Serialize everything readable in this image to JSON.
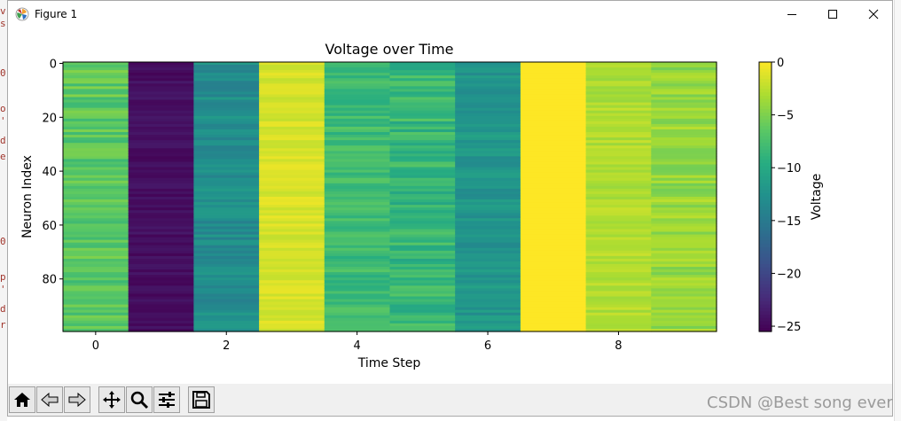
{
  "window": {
    "title": "Figure 1",
    "minimize_glyph": "—",
    "maximize_glyph": "☐",
    "close_glyph": "✕"
  },
  "toolbar": {
    "buttons": [
      "home-icon",
      "back-icon",
      "forward-icon",
      "pan-icon",
      "zoom-icon",
      "configure-subplots-icon",
      "save-icon"
    ]
  },
  "watermark": "CSDN @Best song ever",
  "chart_data": {
    "type": "heatmap",
    "title": "Voltage over Time",
    "xlabel": "Time Step",
    "ylabel": "Neuron Index",
    "colorbar_label": "Voltage",
    "colormap": "viridis",
    "clim": [
      -25.5,
      0
    ],
    "xlim": [
      -0.5,
      9.5
    ],
    "ylim": [
      99.5,
      -0.5
    ],
    "xticks": [
      0,
      2,
      4,
      6,
      8
    ],
    "yticks": [
      0,
      20,
      40,
      60,
      80
    ],
    "colorbar_ticks": [
      0,
      -5,
      -10,
      -15,
      -20,
      -25
    ],
    "rows": 100,
    "columns": [
      {
        "time_step": 0,
        "mean_voltage": -6.5,
        "variation": 1.8
      },
      {
        "time_step": 1,
        "mean_voltage": -24.5,
        "variation": 0.8
      },
      {
        "time_step": 2,
        "mean_voltage": -13.0,
        "variation": 1.5
      },
      {
        "time_step": 3,
        "mean_voltage": -1.5,
        "variation": 0.8
      },
      {
        "time_step": 4,
        "mean_voltage": -8.0,
        "variation": 1.5
      },
      {
        "time_step": 5,
        "mean_voltage": -8.5,
        "variation": 2.0
      },
      {
        "time_step": 6,
        "mean_voltage": -12.0,
        "variation": 1.5
      },
      {
        "time_step": 7,
        "mean_voltage": 0.0,
        "variation": 0.0
      },
      {
        "time_step": 8,
        "mean_voltage": -3.0,
        "variation": 1.0
      },
      {
        "time_step": 9,
        "mean_voltage": -4.0,
        "variation": 1.5
      }
    ]
  }
}
